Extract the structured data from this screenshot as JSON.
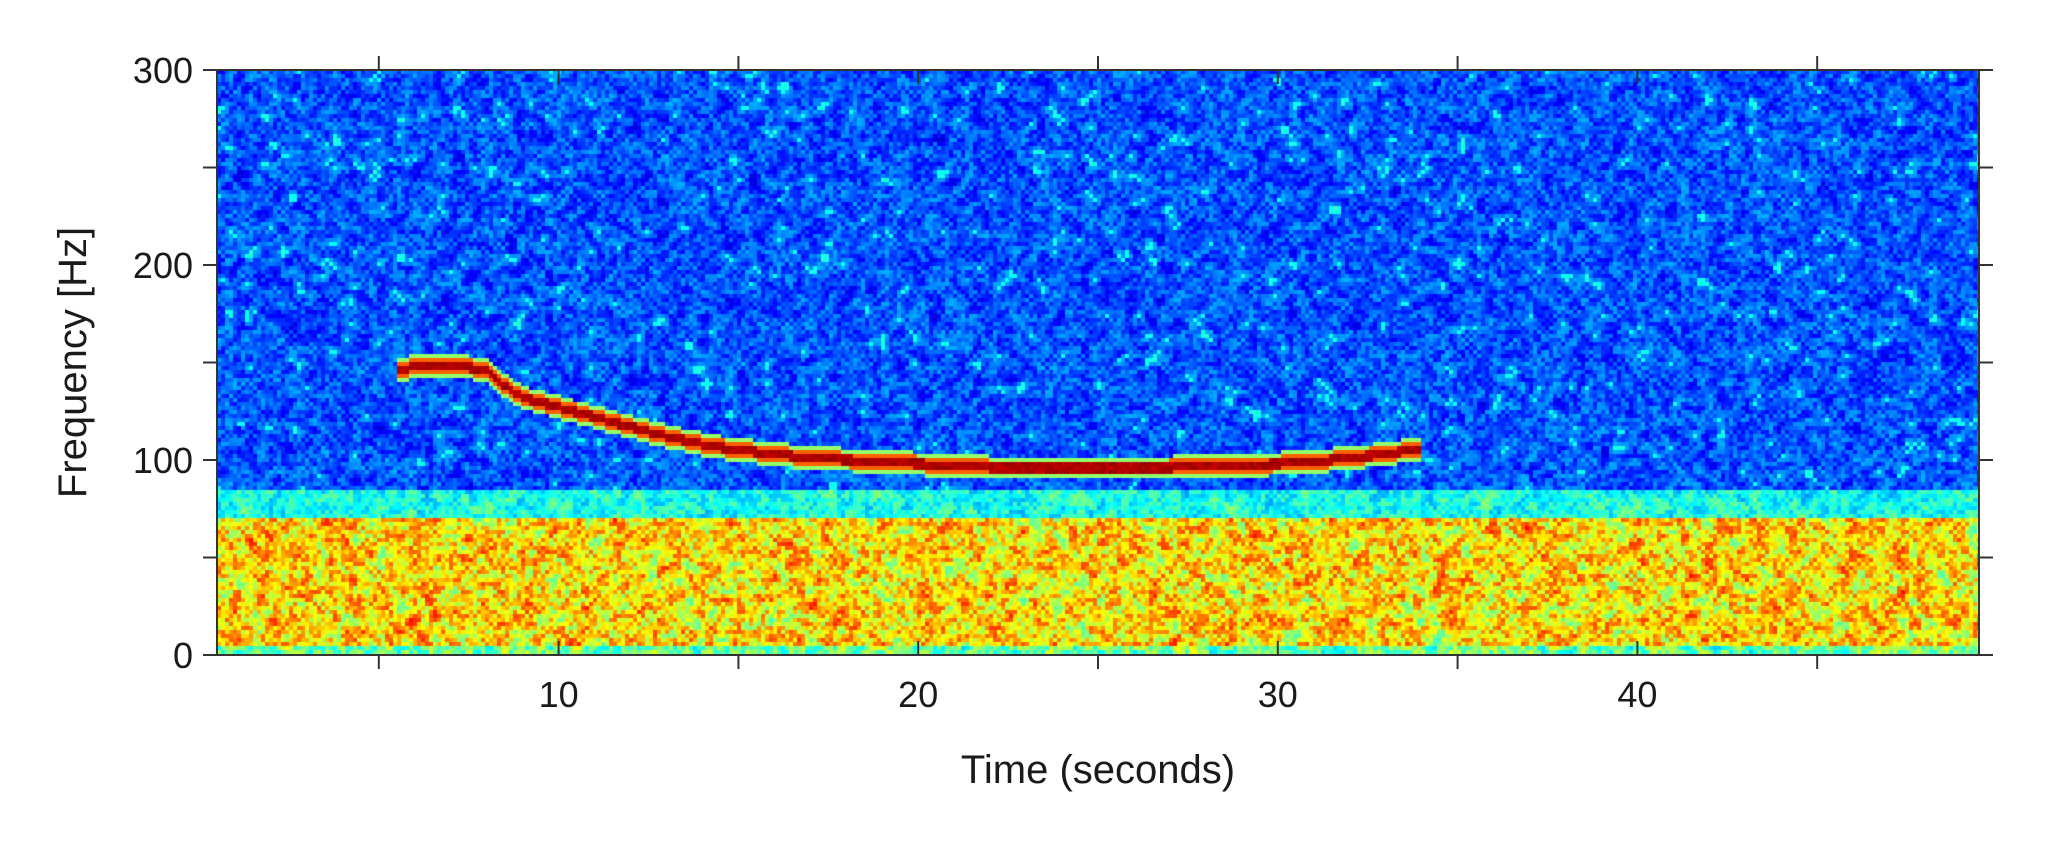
{
  "chart_data": {
    "type": "heatmap",
    "title": "",
    "xlabel": "Time (seconds)",
    "ylabel": "Frequency [Hz]",
    "xlim": [
      0.5,
      49.5
    ],
    "ylim": [
      0,
      300
    ],
    "x_ticks": [
      10,
      20,
      30,
      40
    ],
    "x_minor_ticks": [
      5,
      15,
      25,
      35,
      45
    ],
    "y_ticks": [
      0,
      100,
      200,
      300
    ],
    "y_minor_ticks": [
      50,
      150,
      250
    ],
    "colormap": "jet",
    "grid": false,
    "legend": "none",
    "series": [
      {
        "x": [
          5.5,
          6,
          7,
          8,
          8.5,
          9,
          10,
          11,
          12,
          13,
          14,
          15,
          16,
          17,
          18,
          19,
          20,
          21,
          22,
          23,
          24,
          25,
          26,
          27,
          28,
          29,
          30,
          31,
          32,
          33,
          34
        ],
        "y": [
          145,
          148,
          149,
          146,
          138,
          132,
          127,
          122,
          117,
          112,
          108,
          105,
          103,
          101,
          100,
          99,
          98,
          97,
          96,
          96,
          96,
          96,
          96,
          96,
          97,
          97,
          98,
          99,
          101,
          103,
          106
        ]
      }
    ],
    "background_bands": [
      {
        "y_range": [
          0,
          70
        ],
        "level": "high"
      },
      {
        "y_range": [
          70,
          85
        ],
        "level": "medium"
      },
      {
        "y_range": [
          85,
          300
        ],
        "level": "low"
      }
    ]
  }
}
